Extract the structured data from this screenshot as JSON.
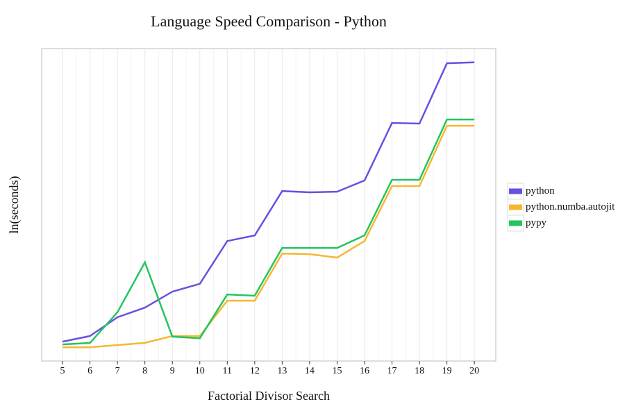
{
  "chart_data": {
    "type": "line",
    "title": "Language Speed Comparison - Python",
    "x_label": "Factorial Divisor Search",
    "y_label": "ln(seconds)",
    "x": [
      5,
      6,
      7,
      8,
      9,
      10,
      11,
      12,
      13,
      14,
      15,
      16,
      17,
      18,
      19,
      20
    ],
    "xlim": [
      4.24,
      20.78
    ],
    "xticks": [
      5,
      6,
      7,
      8,
      9,
      10,
      11,
      12,
      13,
      14,
      15,
      16,
      17,
      18,
      19,
      20
    ],
    "ylim": [
      0,
      100
    ],
    "grid": true,
    "legend": "right",
    "series": [
      {
        "name": "python",
        "color": "#6a4fe0",
        "values": [
          6.2,
          8.0,
          14.0,
          17.1,
          22.2,
          24.7,
          38.4,
          40.2,
          54.4,
          54.0,
          54.2,
          57.8,
          76.2,
          76.0,
          95.3,
          95.6
        ]
      },
      {
        "name": "python.numba.autojit",
        "color": "#f7b731",
        "values": [
          4.4,
          4.4,
          5.1,
          5.8,
          8.0,
          8.0,
          19.3,
          19.3,
          34.4,
          34.2,
          33.1,
          38.4,
          56.0,
          56.0,
          75.3,
          75.3
        ]
      },
      {
        "name": "pypy",
        "color": "#22c55e",
        "values": [
          5.3,
          5.8,
          15.6,
          31.6,
          7.8,
          7.3,
          21.3,
          20.9,
          36.2,
          36.2,
          36.2,
          40.2,
          58.0,
          58.0,
          77.3,
          77.3
        ]
      }
    ]
  }
}
